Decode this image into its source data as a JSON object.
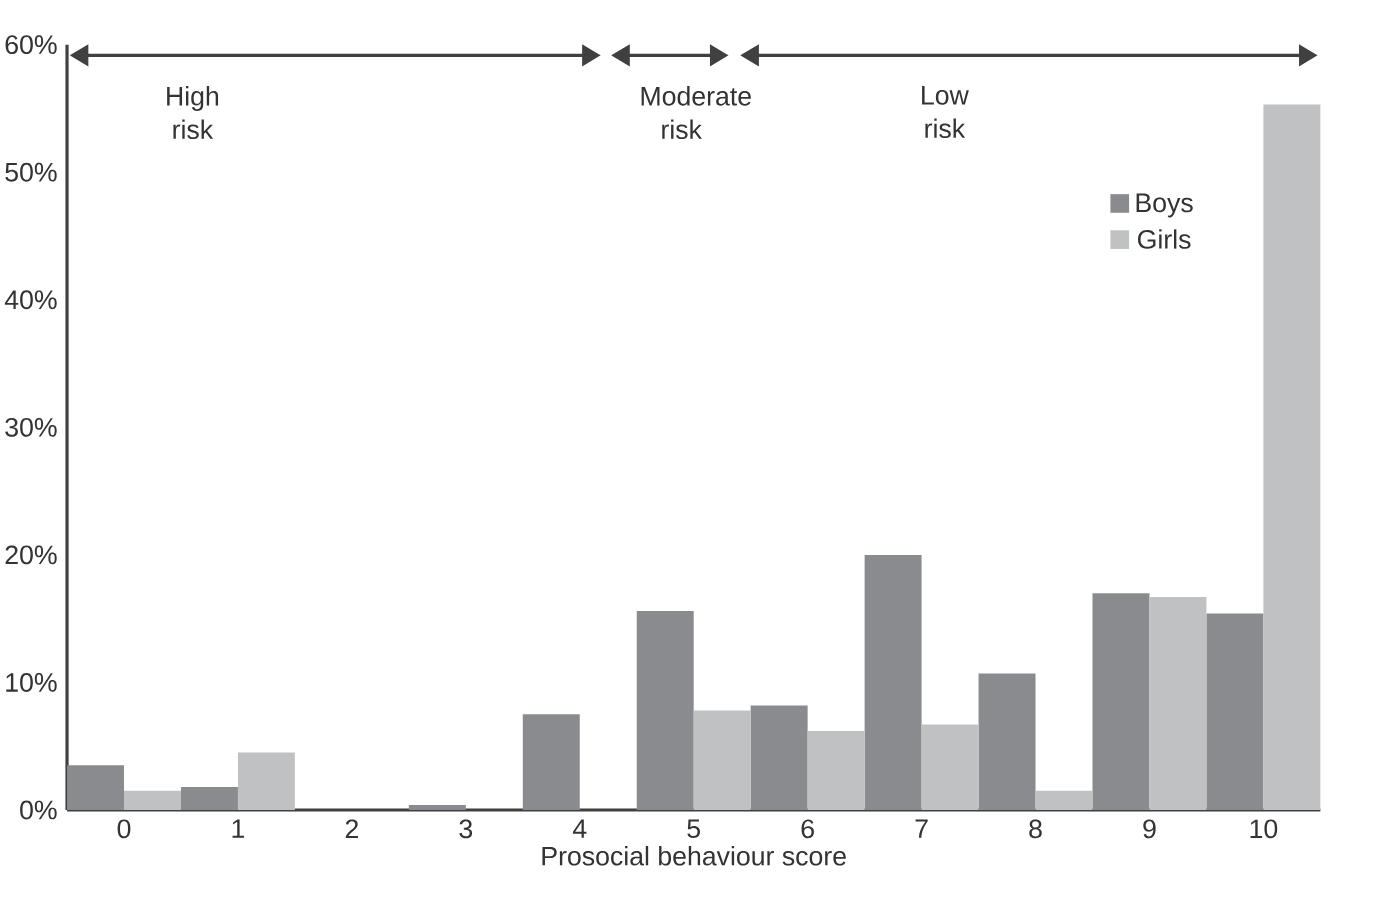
{
  "chart_data": {
    "type": "bar",
    "xlabel": "Prosocial behaviour score",
    "categories": [
      "0",
      "1",
      "2",
      "3",
      "4",
      "5",
      "6",
      "7",
      "8",
      "9",
      "10"
    ],
    "series": [
      {
        "name": "Boys",
        "color": "#8a8b8e",
        "values": [
          3.5,
          1.8,
          0,
          0.4,
          7.5,
          15.6,
          8.2,
          20.0,
          10.7,
          17.0,
          15.4
        ]
      },
      {
        "name": "Girls",
        "color": "#c0c1c3",
        "values": [
          1.5,
          4.5,
          0,
          0,
          0,
          7.8,
          6.2,
          6.7,
          1.5,
          16.7,
          55.3
        ]
      }
    ],
    "ylim": [
      0,
      60
    ],
    "yticks": [
      {
        "value": 0,
        "label": "0%"
      },
      {
        "value": 10,
        "label": "10%"
      },
      {
        "value": 20,
        "label": "20%"
      },
      {
        "value": 30,
        "label": "30%"
      },
      {
        "value": 40,
        "label": "40%"
      },
      {
        "value": 50,
        "label": "50%"
      },
      {
        "value": 60,
        "label": "60%"
      }
    ],
    "annotations": [
      "High risk",
      "Moderate risk",
      "Low risk"
    ],
    "legend": "top right",
    "grid": false
  }
}
